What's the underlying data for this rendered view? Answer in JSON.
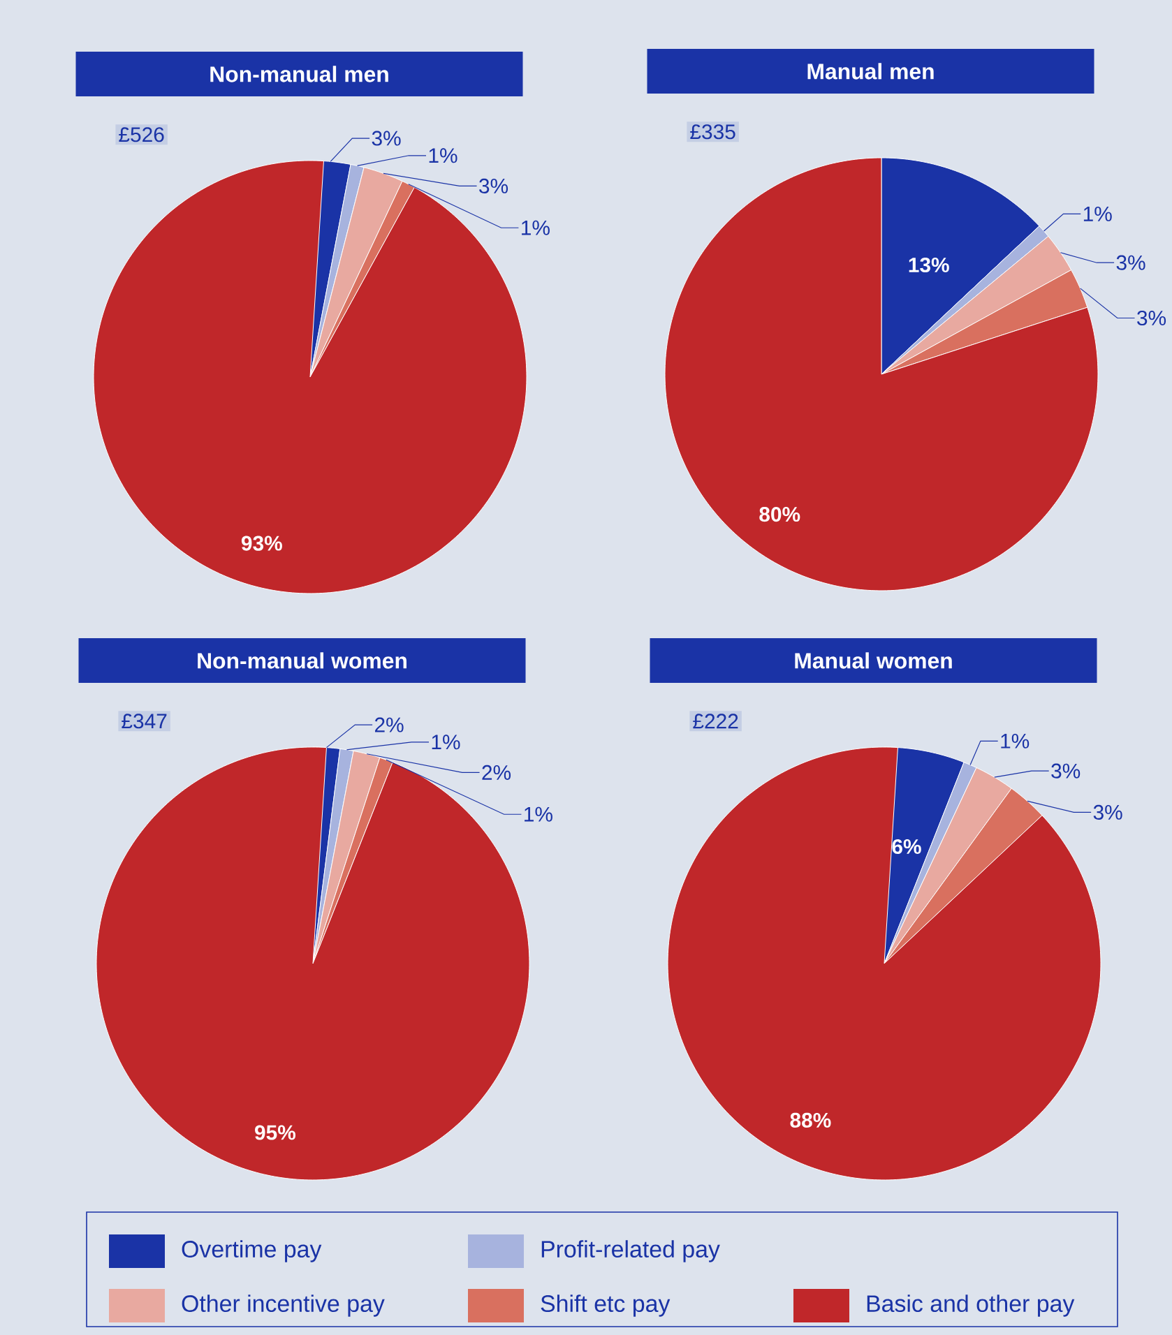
{
  "chart_data": [
    {
      "type": "pie",
      "title": "Non-manual men",
      "subtitle": "£526",
      "categories": [
        null,
        null,
        null,
        null,
        null
      ],
      "values": [
        3,
        1,
        3,
        1,
        93
      ],
      "value_labels": [
        "3%",
        "1%",
        "3%",
        "1%",
        "93%"
      ],
      "colors": [
        "#1a33a6",
        "#a7b3de",
        "#e8a9a0",
        "#d9705f",
        "#c0272a"
      ]
    },
    {
      "type": "pie",
      "title": "Manual men",
      "subtitle": "£335",
      "categories": [
        null,
        null,
        null,
        null,
        null
      ],
      "values": [
        13,
        1,
        3,
        3,
        80
      ],
      "value_labels": [
        "13%",
        "1%",
        "3%",
        "3%",
        "80%"
      ],
      "colors": [
        "#1a33a6",
        "#a7b3de",
        "#e8a9a0",
        "#d9705f",
        "#c0272a"
      ]
    },
    {
      "type": "pie",
      "title": "Non-manual women",
      "subtitle": "£347",
      "categories": [
        null,
        null,
        null,
        null,
        null
      ],
      "values": [
        2,
        1,
        2,
        1,
        95
      ],
      "value_labels": [
        "2%",
        "1%",
        "2%",
        "1%",
        "95%"
      ],
      "colors": [
        "#1a33a6",
        "#a7b3de",
        "#e8a9a0",
        "#d9705f",
        "#c0272a"
      ]
    },
    {
      "type": "pie",
      "title": "Manual women",
      "subtitle": "£222",
      "categories": [
        "Overtime pay",
        "Profit-related pay",
        "Other incentive pay",
        "Shift etc pay",
        "Basic and other pay"
      ],
      "values": [
        6,
        1,
        3,
        3,
        88
      ],
      "value_labels": [
        "6%",
        "1%",
        "3%",
        "3%",
        "88%"
      ],
      "colors": [
        "#1a33a6",
        "#a7b3de",
        "#e8a9a0",
        "#d9705f",
        "#c0272a"
      ],
      "legend": "bottom"
    }
  ]
}
